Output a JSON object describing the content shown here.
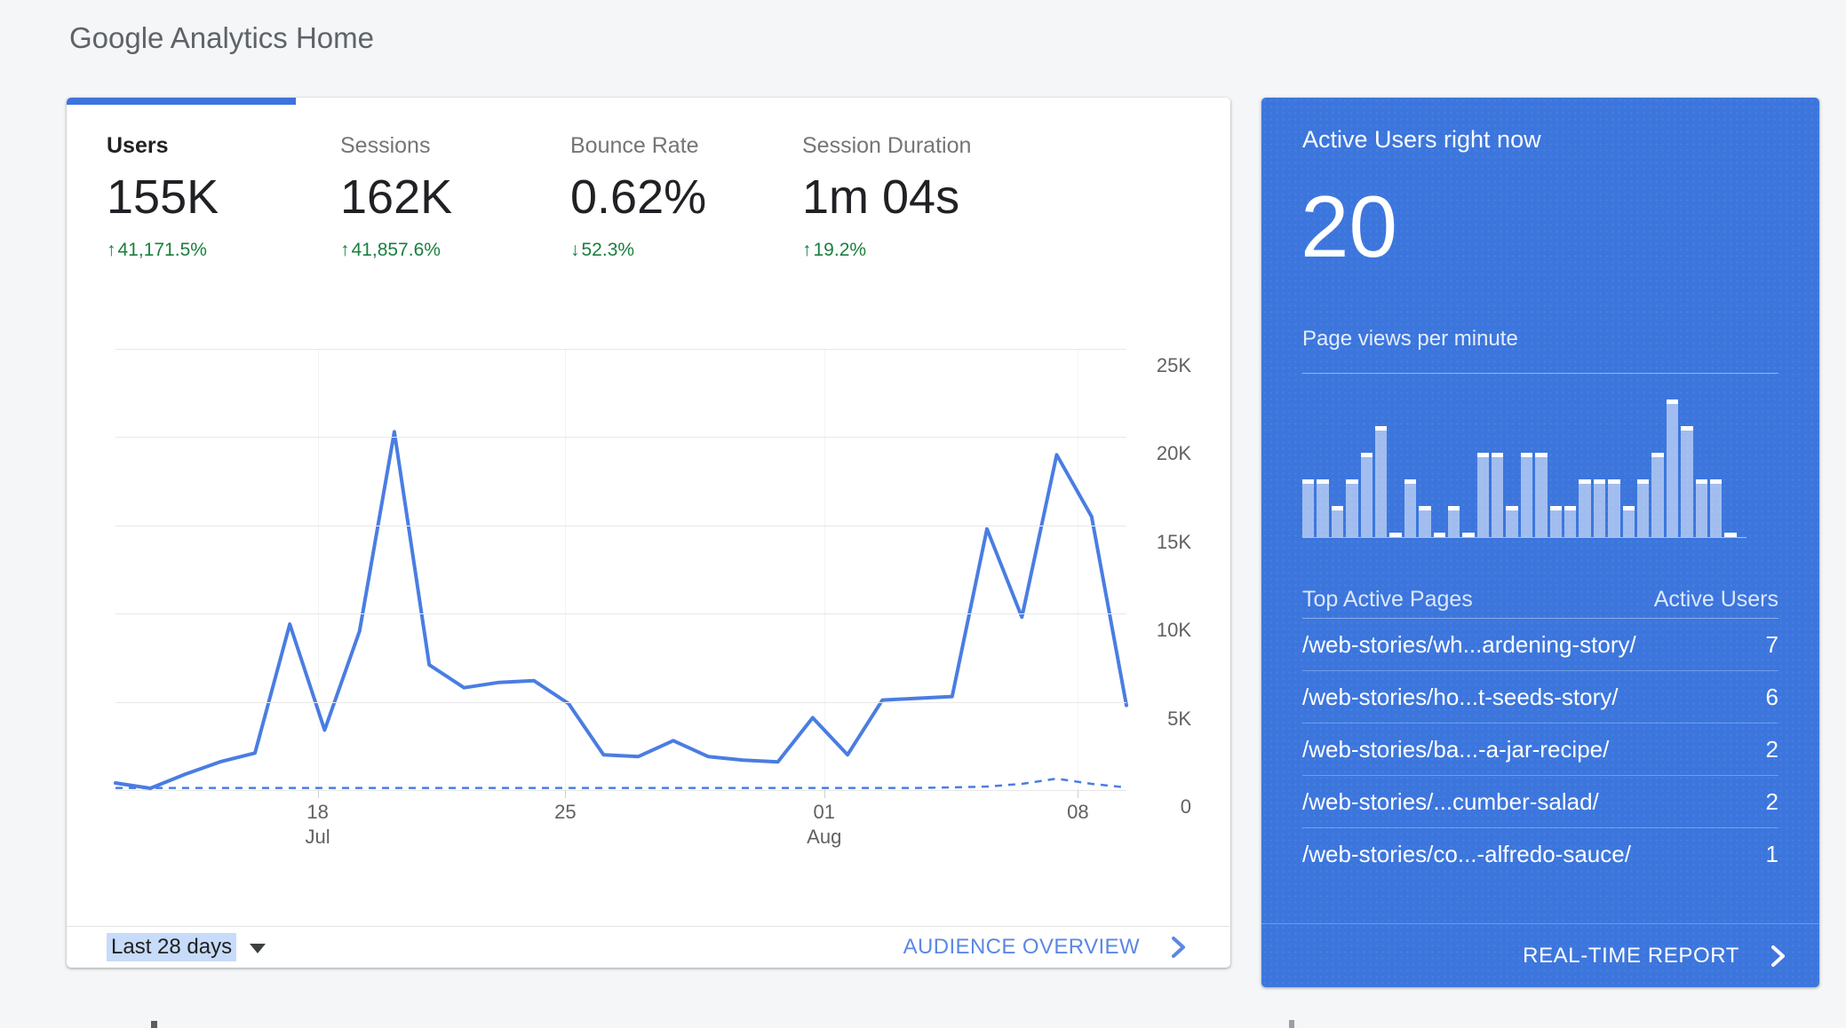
{
  "page": {
    "title": "Google Analytics Home"
  },
  "colors": {
    "accent_blue": "#3d73dd",
    "panel_blue": "#3c76dd",
    "line_blue": "#4a7de2",
    "link_blue": "#5b87e5",
    "green": "#1a7e3e",
    "highlight": "#c7dbfa"
  },
  "overview_card": {
    "metrics": [
      {
        "label": "Users",
        "value": "155K",
        "arrow": "↑",
        "change": "41,171.5%",
        "direction": "up",
        "selected": true
      },
      {
        "label": "Sessions",
        "value": "162K",
        "arrow": "↑",
        "change": "41,857.6%",
        "direction": "up",
        "selected": false
      },
      {
        "label": "Bounce Rate",
        "value": "0.62%",
        "arrow": "↓",
        "change": "52.3%",
        "direction": "down",
        "selected": false
      },
      {
        "label": "Session Duration",
        "value": "1m 04s",
        "arrow": "↑",
        "change": "19.2%",
        "direction": "up",
        "selected": false
      }
    ],
    "footer": {
      "range_label": "Last 28 days",
      "link_label": "AUDIENCE OVERVIEW"
    }
  },
  "chart_data": [
    {
      "type": "line",
      "title": "Users - Last 28 days",
      "ylabel": "Users",
      "ylim_thousands": [
        0,
        25
      ],
      "y_ticks": [
        "25K",
        "20K",
        "15K",
        "10K",
        "5K",
        "0"
      ],
      "grid": "horizontal",
      "x_ticks": [
        {
          "label": "18",
          "sub": "Jul",
          "pos": 0.2
        },
        {
          "label": "25",
          "sub": "",
          "pos": 0.445
        },
        {
          "label": "01",
          "sub": "Aug",
          "pos": 0.701
        },
        {
          "label": "08",
          "sub": "",
          "pos": 0.952
        }
      ],
      "series": [
        {
          "name": "Users current period",
          "style": "solid",
          "values_thousands": [
            0.4,
            0.1,
            0.9,
            1.6,
            2.1,
            9.4,
            3.4,
            9.0,
            20.3,
            7.1,
            5.8,
            6.1,
            6.2,
            4.9,
            2.0,
            1.9,
            2.8,
            1.9,
            1.7,
            1.6,
            4.1,
            2.0,
            5.1,
            5.2,
            5.3,
            14.8,
            9.8,
            19.0,
            15.5,
            4.8
          ]
        },
        {
          "name": "Users previous period",
          "style": "dashed",
          "values_thousands": [
            0.12,
            0.12,
            0.12,
            0.12,
            0.12,
            0.12,
            0.12,
            0.12,
            0.12,
            0.12,
            0.12,
            0.12,
            0.12,
            0.12,
            0.12,
            0.12,
            0.12,
            0.12,
            0.12,
            0.12,
            0.12,
            0.12,
            0.12,
            0.12,
            0.15,
            0.2,
            0.35,
            0.65,
            0.35,
            0.15
          ]
        }
      ]
    },
    {
      "type": "bar",
      "title": "Page views per minute",
      "ylim": [
        0,
        5
      ],
      "values": [
        2,
        2,
        1,
        2,
        3,
        4,
        0,
        2,
        1,
        0,
        1,
        0,
        3,
        3,
        1,
        3,
        3,
        1,
        1,
        2,
        2,
        2,
        1,
        2,
        3,
        5,
        4,
        2,
        2,
        0
      ]
    }
  ],
  "realtime_card": {
    "title": "Active Users right now",
    "active_users": "20",
    "chart_label": "Page views per minute",
    "table": {
      "headers": [
        "Top Active Pages",
        "Active Users"
      ],
      "rows": [
        {
          "path": "/web-stories/wh...ardening-story/",
          "users": "7"
        },
        {
          "path": "/web-stories/ho...t-seeds-story/",
          "users": "6"
        },
        {
          "path": "/web-stories/ba...-a-jar-recipe/",
          "users": "2"
        },
        {
          "path": "/web-stories/...cumber-salad/",
          "users": "2"
        },
        {
          "path": "/web-stories/co...-alfredo-sauce/",
          "users": "1"
        }
      ]
    },
    "footer_label": "REAL-TIME REPORT"
  }
}
